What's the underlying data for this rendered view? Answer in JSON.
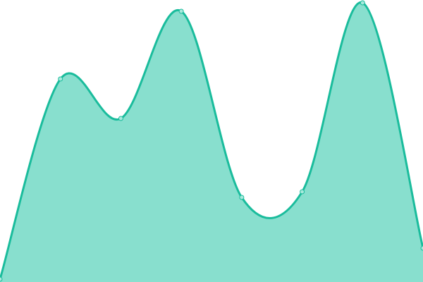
{
  "chart_data": {
    "type": "area",
    "title": "",
    "xlabel": "",
    "ylabel": "",
    "x": [
      0,
      1,
      2,
      3,
      4,
      5,
      6,
      7
    ],
    "series": [
      {
        "values": [
          1,
          72,
          58,
          96,
          30,
          32,
          99,
          12
        ]
      }
    ],
    "ylim": [
      0,
      100
    ],
    "curve": "smooth",
    "grid": false,
    "axes_visible": false,
    "markers": true,
    "colors": {
      "line": "#1abc9c",
      "fill": "#88dfce",
      "marker_fill": "#a8e9dc",
      "marker_stroke": "#1abc9c"
    }
  }
}
